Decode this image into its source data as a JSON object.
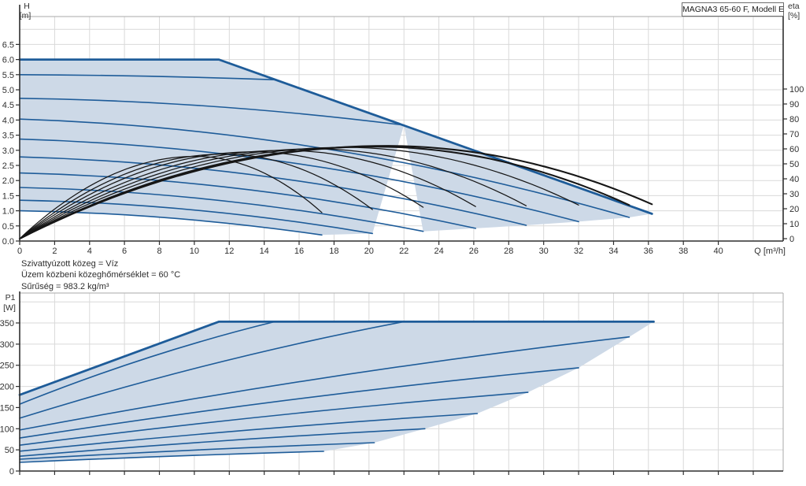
{
  "title_box": {
    "label": "MAGNA3 65-60 F, Modell E"
  },
  "notes": [
    "Szivattyúzott közeg = Víz",
    "Üzem közbeni közeghőmérséklet = 60 °C",
    "Sűrűség = 983.2 kg/m³"
  ],
  "colors": {
    "curve_blue": "#1e5c99",
    "fill_blue": "#cdd9e7",
    "eta_black": "#161616",
    "grid": "#d9d9d9",
    "frame": "#a9a9a9",
    "axis": "#2f2f2f",
    "text": "#303030"
  },
  "chart_data": [
    {
      "type": "line",
      "name": "pump-performance-curves",
      "title": "MAGNA3 65-60 F, Modell E",
      "xlabel": "Q [m³/h]",
      "ylabel_left_lines": [
        "H",
        "[m]"
      ],
      "ylabel_right_lines": [
        "eta",
        "[%]"
      ],
      "x_ticks": [
        0,
        2,
        4,
        6,
        8,
        10,
        12,
        14,
        16,
        18,
        20,
        22,
        24,
        26,
        28,
        30,
        32,
        34,
        36,
        38,
        40
      ],
      "x_grid_max": 42,
      "x_axis_max": 43.7,
      "y_tick_labels": [
        "0.0",
        "0.5",
        "1.0",
        "1.5",
        "2.0",
        "2.5",
        "3.0",
        "3.5",
        "4.0",
        "4.5",
        "5.0",
        "5.5",
        "6.0",
        "6.5"
      ],
      "y_grid_max": 7.0,
      "eta_ticks": [
        0,
        10,
        20,
        30,
        40,
        50,
        60,
        70,
        80,
        90,
        100
      ],
      "grid": true,
      "legend": "none",
      "pump_curves": [
        {
          "h0": 6.0,
          "plateau_to": 11.4,
          "q_end": 36.2,
          "h_end": 0.9,
          "boundary": true
        },
        {
          "h0": 5.5,
          "q_end": 14.7,
          "h_end": 5.33
        },
        {
          "h0": 4.72,
          "q_end": 22.0,
          "h_end": 3.83
        },
        {
          "h0": 4.03,
          "q_end": 34.9,
          "h_end": 0.78
        },
        {
          "h0": 3.37,
          "q_end": 32.0,
          "h_end": 0.64
        },
        {
          "h0": 2.78,
          "q_end": 29.0,
          "h_end": 0.52
        },
        {
          "h0": 2.25,
          "q_end": 26.1,
          "h_end": 0.42
        },
        {
          "h0": 1.77,
          "q_end": 23.1,
          "h_end": 0.32
        },
        {
          "h0": 1.35,
          "q_end": 20.2,
          "h_end": 0.25
        },
        {
          "h0": 1.0,
          "q_end": 17.3,
          "h_end": 0.2,
          "min": true
        }
      ],
      "efficiency_curves": [
        {
          "q_end": 36.2,
          "eta_peak": 62.0,
          "eta_end": 23.0,
          "bold": true
        },
        {
          "q_end": 34.9,
          "eta_peak": 61.5,
          "eta_end": 22.5,
          "bold": true
        },
        {
          "q_end": 32.0,
          "eta_peak": 61.0,
          "eta_end": 22.5
        },
        {
          "q_end": 29.0,
          "eta_peak": 60.0,
          "eta_end": 22.0
        },
        {
          "q_end": 26.1,
          "eta_peak": 59.0,
          "eta_end": 21.5
        },
        {
          "q_end": 23.1,
          "eta_peak": 58.0,
          "eta_end": 21.0
        },
        {
          "q_end": 20.2,
          "eta_peak": 56.5,
          "eta_end": 19.5
        },
        {
          "q_end": 17.3,
          "eta_peak": 55.0,
          "eta_end": 17.5
        }
      ]
    },
    {
      "type": "line",
      "name": "power-curves",
      "xlabel": "",
      "ylabel_left_lines": [
        "P1",
        "[W]"
      ],
      "y_ticks": [
        0,
        50,
        100,
        150,
        200,
        250,
        300,
        350
      ],
      "y_grid_max": 400,
      "grid": true,
      "power_curves": [
        {
          "p0": 180,
          "plateau_from": 11.4,
          "q_end": 36.3,
          "p_end": 353,
          "boundary": true
        },
        {
          "p0": 158,
          "q_end": 14.6,
          "p_end": 353
        },
        {
          "p0": 125,
          "q_end": 22.0,
          "p_end": 353
        },
        {
          "p0": 97,
          "q_end": 34.9,
          "p_end": 317
        },
        {
          "p0": 78,
          "q_end": 32.0,
          "p_end": 244
        },
        {
          "p0": 61,
          "q_end": 29.1,
          "p_end": 186
        },
        {
          "p0": 47,
          "q_end": 26.2,
          "p_end": 136
        },
        {
          "p0": 35,
          "q_end": 23.2,
          "p_end": 100
        },
        {
          "p0": 28,
          "q_end": 20.3,
          "p_end": 67
        },
        {
          "p0": 20.5,
          "q_end": 17.4,
          "p_end": 46.5,
          "min": true
        }
      ]
    }
  ]
}
